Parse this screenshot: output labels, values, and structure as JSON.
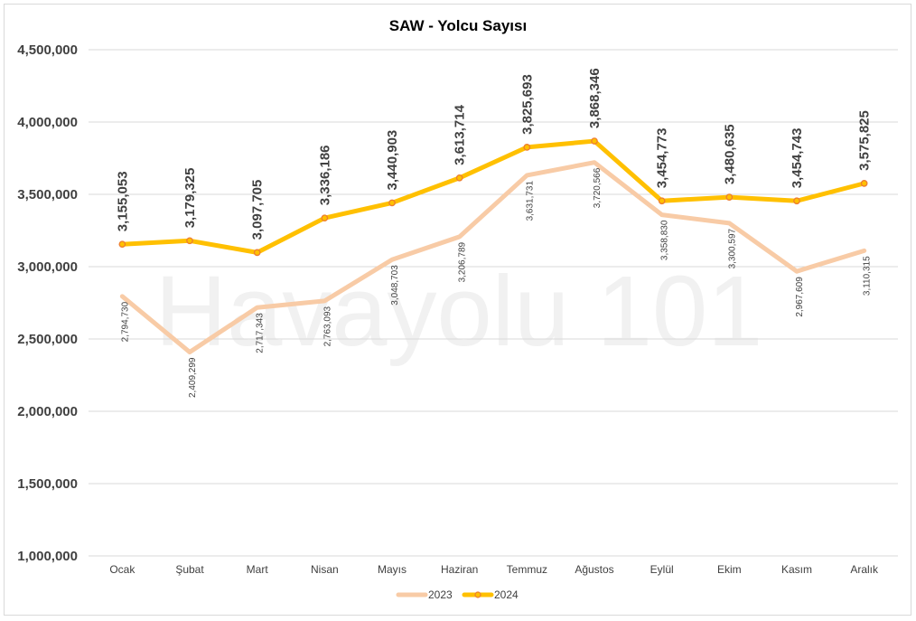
{
  "chart_data": {
    "type": "line",
    "title": "SAW - Yolcu Sayısı",
    "watermark": "Havayolu 101",
    "categories": [
      "Ocak",
      "Şubat",
      "Mart",
      "Nisan",
      "Mayıs",
      "Haziran",
      "Temmuz",
      "Ağustos",
      "Eylül",
      "Ekim",
      "Kasım",
      "Aralık"
    ],
    "ylim": [
      1000000,
      4500000
    ],
    "yticks": [
      1000000,
      1500000,
      2000000,
      2500000,
      3000000,
      3500000,
      4000000,
      4500000
    ],
    "ytick_labels": [
      "1,000,000",
      "1,500,000",
      "2,000,000",
      "2,500,000",
      "3,000,000",
      "3,500,000",
      "4,000,000",
      "4,500,000"
    ],
    "grid": true,
    "legend_position": "bottom",
    "series": [
      {
        "name": "2023",
        "color": "#f8cba6",
        "markers": false,
        "values": [
          2794730,
          2409299,
          2717343,
          2763093,
          3048703,
          3206789,
          3631731,
          3720566,
          3358830,
          3300597,
          2967609,
          3110315
        ],
        "labels": [
          "2,794,730",
          "2,409,299",
          "2,717,343",
          "2,763,093",
          "3,048,703",
          "3,206,789",
          "3,631,731",
          "3,720,566",
          "3,358,830",
          "3,300,597",
          "2,967,609",
          "3,110,315"
        ]
      },
      {
        "name": "2024",
        "color": "#ffc000",
        "marker_color": "#ed7d31",
        "markers": true,
        "values": [
          3155053,
          3179325,
          3097705,
          3336186,
          3440903,
          3613714,
          3825693,
          3868346,
          3454773,
          3480635,
          3454743,
          3575825
        ],
        "labels": [
          "3,155,053",
          "3,179,325",
          "3,097,705",
          "3,336,186",
          "3,440,903",
          "3,613,714",
          "3,825,693",
          "3,868,346",
          "3,454,773",
          "3,480,635",
          "3,454,743",
          "3,575,825"
        ]
      }
    ]
  }
}
